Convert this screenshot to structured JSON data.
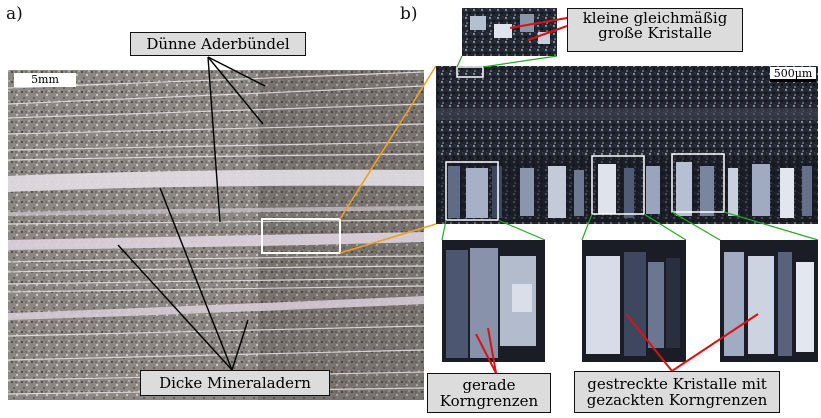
{
  "panels": {
    "a": "a)",
    "b": "b)"
  },
  "labels": {
    "thin_veins": "Dünne Aderbündel",
    "thick_veins": "Dicke Mineraladern",
    "small_crystals_line1": "kleine gleichmäßig",
    "small_crystals_line2": "große Kristalle",
    "straight_line1": "gerade",
    "straight_line2": "Korngrenzen",
    "stretched_line1": "gestreckte Kristalle mit",
    "stretched_line2": "gezackten Korngrenzen"
  },
  "scalebars": {
    "a": "5mm",
    "b": "500µm"
  },
  "colors": {
    "callout_fill": "#dcdcdc",
    "zoom_connector": "#f0a020",
    "inset_connector": "#22aa22",
    "arrow_red": "#dd1111"
  }
}
